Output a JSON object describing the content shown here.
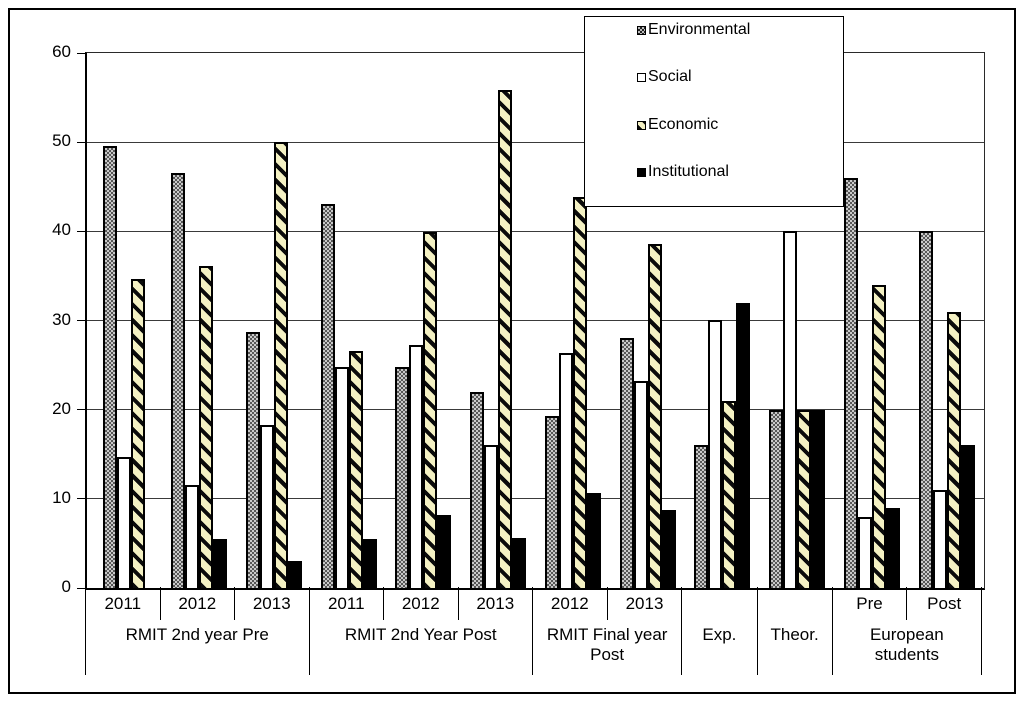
{
  "chart_data": {
    "type": "bar",
    "title": "",
    "xlabel": "",
    "ylabel": "",
    "ylim": [
      0,
      60
    ],
    "yticks": [
      0,
      10,
      20,
      30,
      40,
      50,
      60
    ],
    "grid": "horizontal",
    "legend_position": "top-right-overlay",
    "series_names": [
      "Environmental",
      "Social",
      "Economic",
      "Institutional"
    ],
    "series_keys": [
      "env",
      "soc",
      "eco",
      "inst"
    ],
    "groups": [
      {
        "label": "RMIT 2nd year Pre",
        "cells": [
          {
            "label": "2011",
            "values": [
              49.6,
              14.7,
              34.7,
              0
            ]
          },
          {
            "label": "2012",
            "values": [
              46.5,
              11.6,
              36.1,
              5.5
            ]
          },
          {
            "label": "2013",
            "values": [
              28.7,
              18.3,
              50.0,
              3.0
            ]
          }
        ]
      },
      {
        "label": "RMIT 2nd Year Post",
        "cells": [
          {
            "label": "2011",
            "values": [
              43.1,
              24.8,
              26.6,
              5.5
            ]
          },
          {
            "label": "2012",
            "values": [
              24.8,
              27.3,
              39.9,
              8.2
            ]
          },
          {
            "label": "2013",
            "values": [
              22.0,
              16.0,
              55.8,
              5.6
            ]
          }
        ]
      },
      {
        "label": "RMIT Final year Post",
        "cells": [
          {
            "label": "2012",
            "values": [
              19.3,
              26.4,
              43.8,
              10.6
            ]
          },
          {
            "label": "2013",
            "values": [
              28.0,
              23.2,
              38.6,
              8.7
            ]
          }
        ]
      },
      {
        "label": "Exp.",
        "cells": [
          {
            "label": "",
            "values": [
              16,
              30,
              21,
              32
            ]
          }
        ]
      },
      {
        "label": "Theor.",
        "cells": [
          {
            "label": "",
            "values": [
              20,
              40,
              20,
              20
            ]
          }
        ]
      },
      {
        "label": "European students",
        "cells": [
          {
            "label": "Pre",
            "values": [
              46,
              8,
              34,
              9
            ]
          },
          {
            "label": "Post",
            "values": [
              40,
              11,
              31,
              16
            ]
          }
        ]
      }
    ],
    "colors": {
      "environmental_pattern": "gray-checker #575757/#c9c9c9",
      "social": "#ffffff",
      "economic_pattern": "black diagonal hatch on #f4f1c3",
      "institutional": "#000000",
      "gridline": "#3a3a3a",
      "axis": "#000000",
      "background": "#ffffff"
    }
  }
}
